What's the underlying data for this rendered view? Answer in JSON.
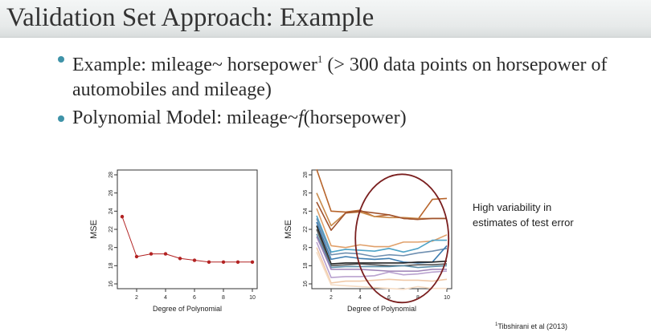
{
  "slide": {
    "title": "Validation Set Approach: Example",
    "bullet1": {
      "text": "Example: mileage~ horsepower",
      "sup": "1",
      "rest": " (> 300 data points on horsepower of automobiles and mileage)"
    },
    "bullet2": {
      "prefix": "Polynomial Model: mileage~",
      "func": "f",
      "suffix": "(horsepower)"
    },
    "note": "High variability in estimates of test error",
    "citation": {
      "sup": "1",
      "text": "Tibshirani et al (2013)"
    }
  },
  "colors": {
    "bullet": "#3f93a8",
    "left_series": "#b22222",
    "ellipse": "#7a1f1f"
  },
  "chart_data": [
    {
      "type": "line",
      "x": [
        1,
        2,
        3,
        4,
        5,
        6,
        7,
        8,
        9,
        10
      ],
      "series": [
        {
          "values": [
            23.4,
            19.0,
            19.3,
            19.3,
            18.8,
            18.6,
            18.4,
            18.4,
            18.4,
            18.4
          ],
          "color": "#b22222"
        }
      ],
      "xlabel": "Degree of Polynomial",
      "ylabel": "MSE",
      "xlim": [
        1,
        10
      ],
      "ylim": [
        16,
        28
      ],
      "xticks": [
        "2",
        "4",
        "6",
        "8",
        "10"
      ],
      "yticks": [
        "16",
        "18",
        "20",
        "22",
        "24",
        "26",
        "28"
      ],
      "markers": true
    },
    {
      "type": "line",
      "x": [
        1,
        2,
        3,
        4,
        5,
        6,
        7,
        8,
        9,
        10
      ],
      "series": [
        {
          "values": [
            28.6,
            24.0,
            23.9,
            24.1,
            23.4,
            23.6,
            23.2,
            23.1,
            25.3,
            25.4
          ],
          "color": "#b8652c"
        },
        {
          "values": [
            26.0,
            22.4,
            23.8,
            23.9,
            23.4,
            23.3,
            23.3,
            23.2,
            23.2,
            23.2
          ],
          "color": "#c88a4a"
        },
        {
          "values": [
            25.0,
            21.9,
            23.8,
            24.0,
            23.8,
            23.6,
            23.2,
            23.1,
            23.2,
            23.2
          ],
          "color": "#a0522d"
        },
        {
          "values": [
            24.3,
            20.2,
            20.0,
            20.3,
            20.1,
            20.1,
            20.6,
            20.6,
            20.7,
            21.4
          ],
          "color": "#e0a06a"
        },
        {
          "values": [
            23.5,
            19.5,
            19.8,
            19.7,
            19.6,
            19.9,
            19.5,
            19.9,
            20.8,
            20.8
          ],
          "color": "#4fa3c7"
        },
        {
          "values": [
            23.2,
            19.2,
            19.4,
            19.3,
            19.0,
            19.2,
            19.1,
            19.4,
            19.6,
            19.9
          ],
          "color": "#6e8fb0"
        },
        {
          "values": [
            22.8,
            18.7,
            19.0,
            18.8,
            18.7,
            18.8,
            18.4,
            18.3,
            18.4,
            20.2
          ],
          "color": "#3c7cb0"
        },
        {
          "values": [
            22.4,
            18.2,
            18.3,
            18.3,
            18.3,
            18.3,
            18.3,
            18.4,
            18.4,
            18.5
          ],
          "color": "#222222"
        },
        {
          "values": [
            22.0,
            18.0,
            18.1,
            18.2,
            18.1,
            18.0,
            18.0,
            18.1,
            18.1,
            18.2
          ],
          "color": "#555555"
        },
        {
          "values": [
            21.5,
            17.8,
            17.9,
            17.9,
            17.9,
            17.9,
            18.0,
            17.8,
            17.9,
            18.0
          ],
          "color": "#5c8fa8"
        },
        {
          "values": [
            21.2,
            17.6,
            17.6,
            17.6,
            17.5,
            17.4,
            17.4,
            17.4,
            17.6,
            17.6
          ],
          "color": "#9b7fb5"
        },
        {
          "values": [
            20.6,
            16.7,
            16.8,
            16.8,
            16.9,
            17.3,
            17.0,
            17.1,
            17.3,
            17.4
          ],
          "color": "#b9a2cf"
        },
        {
          "values": [
            20.0,
            16.1,
            16.3,
            16.3,
            16.4,
            16.5,
            16.4,
            16.4,
            16.3,
            16.5
          ],
          "color": "#f0c9a8"
        },
        {
          "values": [
            19.5,
            15.9,
            15.8,
            15.7,
            15.6,
            15.5,
            15.4,
            15.7,
            15.5,
            15.5
          ],
          "color": "#f6dcc4"
        }
      ],
      "xlabel": "Degree of Polynomial",
      "ylabel": "MSE",
      "xlim": [
        1,
        10
      ],
      "ylim": [
        16,
        28
      ],
      "xticks": [
        "2",
        "4",
        "6",
        "8",
        "10"
      ],
      "yticks": [
        "16",
        "18",
        "20",
        "22",
        "24",
        "26",
        "28"
      ],
      "annotation": "ellipse highlighting degrees 4 to 10"
    }
  ]
}
